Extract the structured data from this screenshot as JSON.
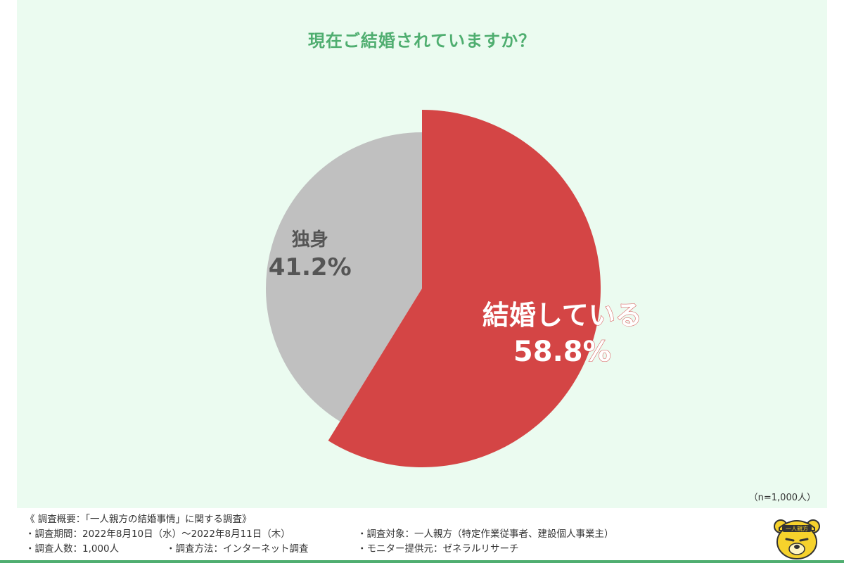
{
  "chart_data": {
    "type": "pie",
    "title": "現在ご結婚されていますか？",
    "sample_size": "（n=1,000人）",
    "slices": [
      {
        "label": "結婚している",
        "value": 58.8,
        "display": "58.8%",
        "color": "#d44545"
      },
      {
        "label": "独身",
        "value": 41.2,
        "display": "41.2%",
        "color": "#c0c0c0"
      }
    ],
    "start_angle_deg": 0,
    "direction": "clockwise"
  },
  "footer": {
    "heading": "《 調査概要：「一人親方の結婚事情」に関する調査》",
    "period": "調査期間：2022年8月10日（水）〜2022年8月11日（木）",
    "target": "調査対象：一人親方（特定作業従事者、建設個人事業主）",
    "count": "調査人数：1,000人",
    "method": "調査方法：インターネット調査",
    "provider": "モニター提供元：ゼネラルリサーチ"
  },
  "logo": {
    "text": "一人親方",
    "icon": "bear-mascot-icon",
    "color": "#f6d22c"
  }
}
